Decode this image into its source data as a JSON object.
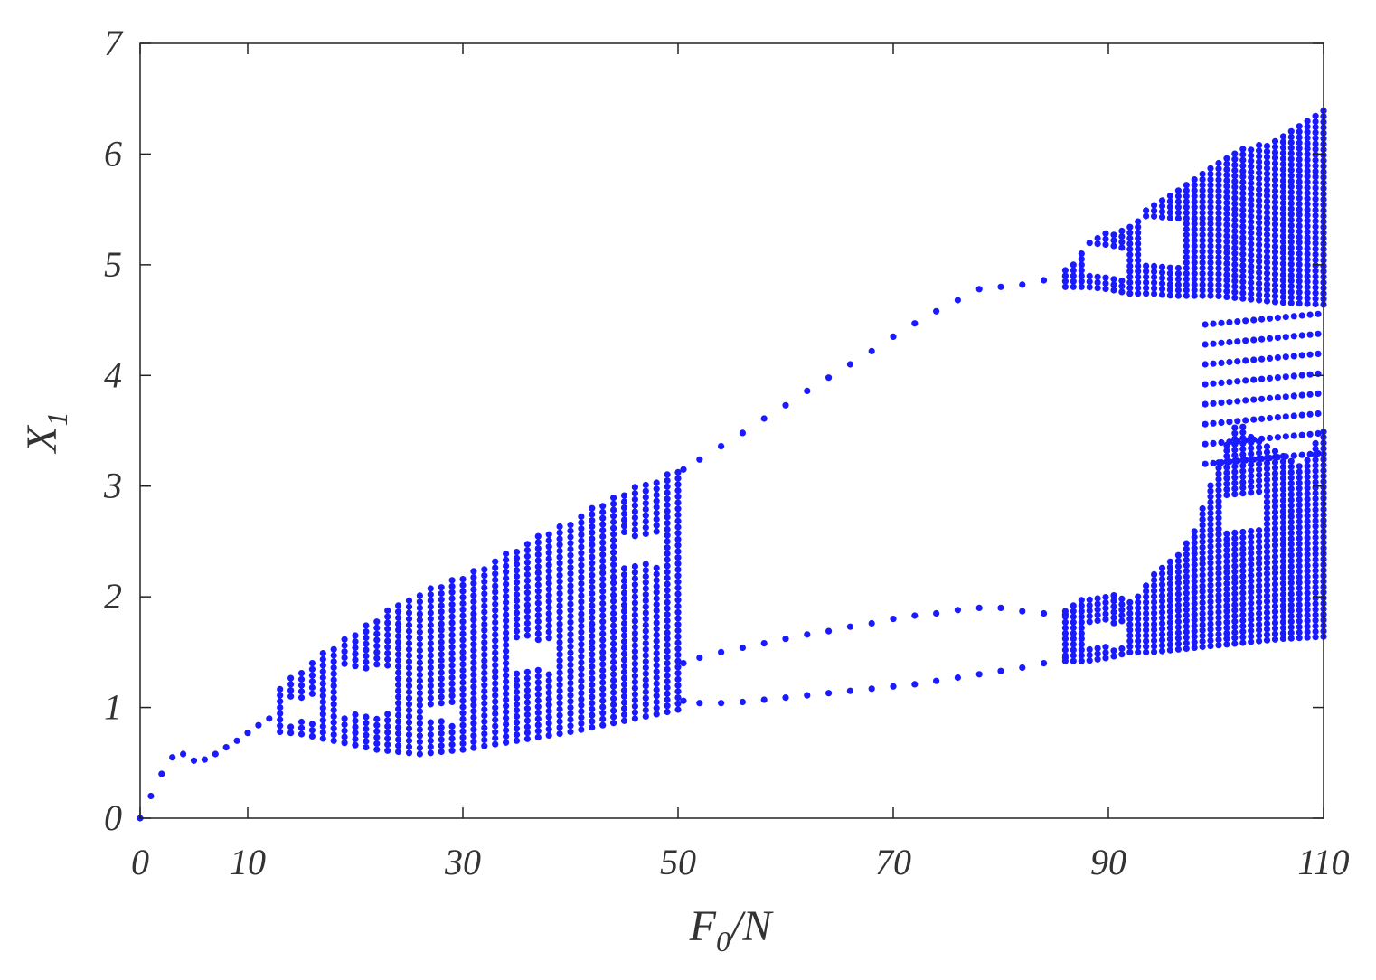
{
  "chart_data": {
    "type": "scatter",
    "title": "",
    "xlabel": {
      "main": "F",
      "sub": "0",
      "suffix": "/N"
    },
    "ylabel": {
      "main": "X",
      "sub": "1"
    },
    "xlim": [
      0,
      110
    ],
    "ylim": [
      0,
      7
    ],
    "xticks": [
      0,
      10,
      30,
      50,
      70,
      90,
      110
    ],
    "xtick_labels": [
      "0",
      "10",
      "30",
      "50",
      "70",
      "90",
      "110"
    ],
    "yticks": [
      0,
      1,
      2,
      3,
      4,
      5,
      6,
      7
    ],
    "ytick_labels": [
      "0",
      "1",
      "2",
      "3",
      "4",
      "5",
      "6",
      "7"
    ],
    "grid": false,
    "marker_color": "#1a1aff",
    "series": [
      {
        "kind": "branch",
        "points": [
          [
            0,
            0.0
          ],
          [
            1,
            0.2
          ],
          [
            2,
            0.4
          ],
          [
            3,
            0.55
          ],
          [
            4,
            0.58
          ],
          [
            5,
            0.52
          ],
          [
            6,
            0.53
          ],
          [
            7,
            0.58
          ],
          [
            8,
            0.64
          ],
          [
            9,
            0.7
          ],
          [
            10,
            0.77
          ],
          [
            11,
            0.84
          ],
          [
            12,
            0.9
          ],
          [
            50.5,
            3.15
          ],
          [
            52,
            3.24
          ],
          [
            54,
            3.36
          ],
          [
            56,
            3.48
          ],
          [
            58,
            3.61
          ],
          [
            60,
            3.73
          ],
          [
            62,
            3.86
          ],
          [
            64,
            3.98
          ],
          [
            66,
            4.1
          ],
          [
            68,
            4.22
          ],
          [
            70,
            4.35
          ],
          [
            72,
            4.47
          ],
          [
            74,
            4.58
          ],
          [
            76,
            4.68
          ],
          [
            78,
            4.78
          ],
          [
            80,
            4.8
          ],
          [
            82,
            4.82
          ],
          [
            84,
            4.86
          ],
          [
            86,
            4.9
          ],
          [
            50.5,
            1.4
          ],
          [
            52,
            1.45
          ],
          [
            54,
            1.5
          ],
          [
            56,
            1.54
          ],
          [
            58,
            1.58
          ],
          [
            60,
            1.62
          ],
          [
            62,
            1.66
          ],
          [
            64,
            1.69
          ],
          [
            66,
            1.73
          ],
          [
            68,
            1.76
          ],
          [
            70,
            1.8
          ],
          [
            72,
            1.83
          ],
          [
            74,
            1.85
          ],
          [
            76,
            1.88
          ],
          [
            78,
            1.9
          ],
          [
            80,
            1.9
          ],
          [
            82,
            1.87
          ],
          [
            84,
            1.85
          ],
          [
            86,
            1.84
          ],
          [
            50.5,
            1.06
          ],
          [
            52,
            1.04
          ],
          [
            54,
            1.04
          ],
          [
            56,
            1.05
          ],
          [
            58,
            1.07
          ],
          [
            60,
            1.09
          ],
          [
            62,
            1.11
          ],
          [
            64,
            1.13
          ],
          [
            66,
            1.15
          ],
          [
            68,
            1.17
          ],
          [
            70,
            1.19
          ],
          [
            72,
            1.21
          ],
          [
            74,
            1.24
          ],
          [
            76,
            1.27
          ],
          [
            78,
            1.3
          ],
          [
            80,
            1.33
          ],
          [
            82,
            1.36
          ],
          [
            84,
            1.4
          ],
          [
            86,
            1.45
          ]
        ]
      },
      {
        "kind": "chaotic-band",
        "x_range": [
          13,
          50
        ],
        "x_step": 1,
        "y_step": 0.055,
        "upper": [
          [
            13,
            1.2
          ],
          [
            15,
            1.35
          ],
          [
            17,
            1.5
          ],
          [
            20,
            1.7
          ],
          [
            25,
            2.0
          ],
          [
            30,
            2.2
          ],
          [
            35,
            2.45
          ],
          [
            40,
            2.7
          ],
          [
            45,
            2.95
          ],
          [
            50,
            3.15
          ]
        ],
        "lower": [
          [
            13,
            0.78
          ],
          [
            15,
            0.76
          ],
          [
            18,
            0.7
          ],
          [
            22,
            0.62
          ],
          [
            26,
            0.58
          ],
          [
            30,
            0.62
          ],
          [
            35,
            0.7
          ],
          [
            40,
            0.78
          ],
          [
            45,
            0.88
          ],
          [
            50,
            0.98
          ]
        ],
        "gaps": [
          [
            14,
            16,
            0.88,
            1.08
          ],
          [
            19,
            23,
            0.95,
            1.35
          ],
          [
            27,
            29,
            0.88,
            1.02
          ],
          [
            35,
            38,
            1.35,
            1.6
          ],
          [
            45,
            48,
            2.3,
            2.55
          ]
        ]
      },
      {
        "kind": "chaotic-band",
        "x_range": [
          86,
          110
        ],
        "x_step": 0.75,
        "y_step": 0.05,
        "upper": [
          [
            86,
            4.95
          ],
          [
            88,
            5.2
          ],
          [
            90,
            5.3
          ],
          [
            92,
            5.35
          ],
          [
            94,
            5.55
          ],
          [
            96,
            5.65
          ],
          [
            98,
            5.8
          ],
          [
            100,
            5.9
          ],
          [
            102,
            6.05
          ],
          [
            104,
            6.1
          ],
          [
            106,
            6.15
          ],
          [
            108,
            6.3
          ],
          [
            110,
            6.4
          ]
        ],
        "lower": [
          [
            86,
            4.8
          ],
          [
            88,
            4.8
          ],
          [
            90,
            4.78
          ],
          [
            92,
            4.74
          ],
          [
            94,
            4.74
          ],
          [
            96,
            4.72
          ],
          [
            98,
            4.72
          ],
          [
            100,
            4.72
          ],
          [
            102,
            4.7
          ],
          [
            104,
            4.68
          ],
          [
            106,
            4.66
          ],
          [
            108,
            4.65
          ],
          [
            110,
            4.64
          ]
        ],
        "gaps": [
          [
            88,
            91.5,
            4.9,
            5.15
          ],
          [
            93,
            97,
            5.0,
            5.4
          ]
        ]
      },
      {
        "kind": "chaotic-band",
        "x_range": [
          86,
          110
        ],
        "x_step": 0.75,
        "y_step": 0.05,
        "upper": [
          [
            86,
            1.9
          ],
          [
            88,
            2.02
          ],
          [
            90,
            2.04
          ],
          [
            92,
            1.95
          ],
          [
            94,
            2.2
          ],
          [
            96,
            2.35
          ],
          [
            98,
            2.6
          ],
          [
            100,
            3.2
          ],
          [
            102,
            3.6
          ],
          [
            104,
            3.4
          ],
          [
            106,
            3.3
          ],
          [
            108,
            3.2
          ],
          [
            110,
            3.5
          ]
        ],
        "lower": [
          [
            86,
            1.42
          ],
          [
            88,
            1.42
          ],
          [
            90,
            1.45
          ],
          [
            92,
            1.5
          ],
          [
            94,
            1.5
          ],
          [
            96,
            1.52
          ],
          [
            98,
            1.54
          ],
          [
            100,
            1.56
          ],
          [
            102,
            1.58
          ],
          [
            104,
            1.6
          ],
          [
            106,
            1.62
          ],
          [
            108,
            1.63
          ],
          [
            110,
            1.64
          ]
        ],
        "gaps": [
          [
            88,
            91.5,
            1.55,
            1.75
          ],
          [
            101,
            104,
            2.6,
            2.9
          ]
        ]
      },
      {
        "kind": "chaotic-band",
        "x_range": [
          99,
          110
        ],
        "x_step": 0.75,
        "y_step": 0.18,
        "upper": [
          [
            99,
            4.5
          ],
          [
            110,
            4.7
          ]
        ],
        "lower": [
          [
            99,
            3.2
          ],
          [
            110,
            3.3
          ]
        ],
        "gaps": []
      }
    ]
  }
}
